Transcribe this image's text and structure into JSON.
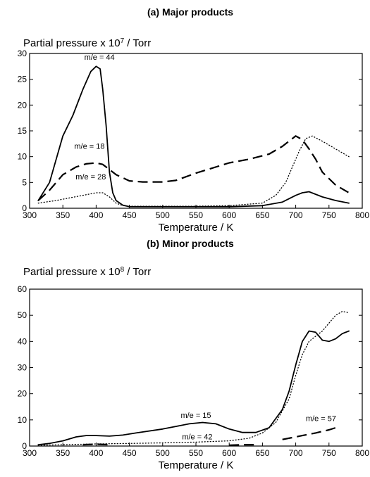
{
  "chart_data": [
    {
      "type": "line",
      "title": "(a) Major products",
      "ylabel_prefix": "Partial pressure x 10",
      "ylabel_exp": "7",
      "ylabel_suffix": " / Torr",
      "xlabel": "Temperature / K",
      "xlim": [
        300,
        800
      ],
      "ylim": [
        0,
        30
      ],
      "xticks": [
        300,
        350,
        400,
        450,
        500,
        550,
        600,
        650,
        700,
        750,
        800
      ],
      "yticks": [
        0,
        5,
        10,
        15,
        20,
        25,
        30
      ],
      "grid": false,
      "series": [
        {
          "name": "m/e = 44",
          "style": "solid",
          "x": [
            313,
            330,
            350,
            365,
            380,
            392,
            400,
            406,
            410,
            415,
            420,
            425,
            430,
            440,
            450,
            500,
            550,
            600,
            650,
            680,
            700,
            710,
            720,
            740,
            760,
            780
          ],
          "y": [
            1.5,
            5,
            14,
            18,
            23,
            26.5,
            27.5,
            27,
            23,
            16,
            7,
            3,
            1.5,
            0.6,
            0.3,
            0.3,
            0.3,
            0.3,
            0.5,
            1.2,
            2.5,
            3,
            3.2,
            2.2,
            1.5,
            1
          ]
        },
        {
          "name": "m/e = 18",
          "style": "dashed",
          "x": [
            313,
            330,
            350,
            370,
            385,
            400,
            410,
            420,
            430,
            450,
            470,
            500,
            520,
            550,
            600,
            630,
            660,
            680,
            700,
            710,
            720,
            730,
            740,
            760,
            780
          ],
          "y": [
            1.5,
            3.5,
            6.5,
            8,
            8.6,
            8.8,
            8.5,
            7.5,
            6.5,
            5.3,
            5.1,
            5.1,
            5.4,
            6.8,
            8.8,
            9.5,
            10.5,
            12,
            14,
            13.3,
            11.5,
            9.5,
            7,
            4.5,
            3
          ]
        },
        {
          "name": "m/e = 28",
          "style": "dotted",
          "x": [
            313,
            340,
            360,
            380,
            400,
            410,
            420,
            430,
            440,
            450,
            500,
            550,
            600,
            650,
            670,
            685,
            695,
            705,
            715,
            725,
            740,
            760,
            780
          ],
          "y": [
            1,
            1.5,
            2,
            2.5,
            3,
            3,
            2.2,
            1,
            0.5,
            0.4,
            0.4,
            0.4,
            0.5,
            1,
            2.5,
            5,
            8,
            11,
            13.5,
            14,
            13,
            11.5,
            10
          ]
        }
      ],
      "annotations": [
        {
          "text": "m/e = 44",
          "x": 405,
          "y": 28.8
        },
        {
          "text": "m/e = 18",
          "x": 390,
          "y": 11.5
        },
        {
          "text": "m/e = 28",
          "x": 392,
          "y": 5.6
        }
      ]
    },
    {
      "type": "line",
      "title": "(b) Minor products",
      "ylabel_prefix": "Partial pressure x 10",
      "ylabel_exp": "8",
      "ylabel_suffix": " / Torr",
      "xlabel": "Temperature / K",
      "xlim": [
        300,
        800
      ],
      "ylim": [
        0,
        60
      ],
      "xticks": [
        300,
        350,
        400,
        450,
        500,
        550,
        600,
        650,
        700,
        750,
        800
      ],
      "yticks": [
        0,
        10,
        20,
        30,
        40,
        50,
        60
      ],
      "grid": false,
      "series": [
        {
          "name": "m/e = 15",
          "style": "solid",
          "x": [
            313,
            330,
            350,
            370,
            385,
            400,
            420,
            440,
            460,
            500,
            540,
            560,
            580,
            600,
            620,
            640,
            660,
            680,
            690,
            700,
            710,
            720,
            730,
            740,
            750,
            760,
            770,
            780
          ],
          "y": [
            0.5,
            1,
            2,
            3.5,
            4,
            4,
            3.8,
            4.2,
            5,
            6.5,
            8.5,
            9,
            8.5,
            6.5,
            5.2,
            5.2,
            7,
            14,
            21,
            31,
            40,
            44,
            43.5,
            40.5,
            40,
            41,
            43,
            44
          ]
        },
        {
          "name": "m/e = 42",
          "style": "dotted",
          "x": [
            313,
            350,
            400,
            450,
            500,
            550,
            600,
            630,
            650,
            670,
            690,
            700,
            710,
            720,
            730,
            740,
            750,
            760,
            770,
            780
          ],
          "y": [
            0.3,
            0.5,
            0.8,
            1,
            1.2,
            1.5,
            2,
            3,
            5,
            9,
            18,
            27,
            35,
            40,
            42,
            44,
            47,
            50,
            51.5,
            51
          ]
        },
        {
          "name": "m/e = 57",
          "style": "dashed",
          "x": [
            380,
            400,
            420,
            600,
            620,
            640,
            680,
            700,
            710,
            730,
            750,
            760
          ],
          "y": [
            0.5,
            0.7,
            0.5,
            0.3,
            0.5,
            0.5,
            2.5,
            3.5,
            4,
            5,
            6.2,
            7
          ],
          "gaps_after": [
            2,
            5
          ]
        }
      ],
      "annotations": [
        {
          "text": "m/e = 15",
          "x": 550,
          "y": 10.8
        },
        {
          "text": "m/e = 42",
          "x": 552,
          "y": 2.5
        },
        {
          "text": "m/e = 57",
          "x": 738,
          "y": 9.5
        }
      ]
    }
  ]
}
